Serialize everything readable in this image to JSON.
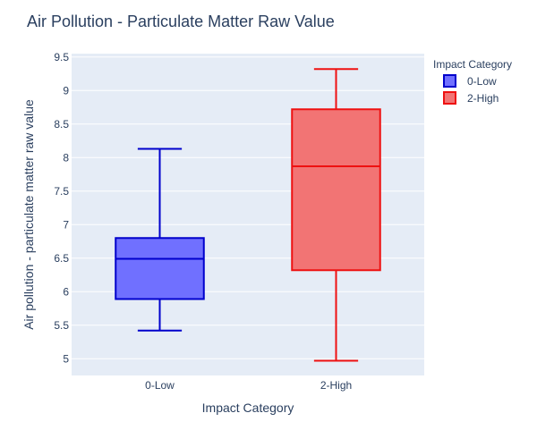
{
  "chart_data": {
    "type": "box",
    "title": "Air Pollution - Particulate Matter Raw Value",
    "xlabel": "Impact Category",
    "ylabel": "Air pollution - particulate matter raw value",
    "categories": [
      "0-Low",
      "2-High"
    ],
    "ylim": [
      4.75,
      9.55
    ],
    "yticks": [
      5,
      5.5,
      6,
      6.5,
      7,
      7.5,
      8,
      8.5,
      9,
      9.5
    ],
    "grid": true,
    "legend": {
      "title": "Impact Category",
      "placement": "top-right"
    },
    "series": [
      {
        "name": "0-Low",
        "category": "0-Low",
        "min": 5.42,
        "q1": 5.89,
        "median": 6.49,
        "q3": 6.8,
        "max": 8.13,
        "line_color": "#0000cc",
        "fill_color": "#7070ff"
      },
      {
        "name": "2-High",
        "category": "2-High",
        "min": 4.97,
        "q1": 6.32,
        "median": 7.87,
        "q3": 8.72,
        "max": 9.32,
        "line_color": "#ee1111",
        "fill_color": "#f27474"
      }
    ],
    "plot_bg": "#e5ecf6",
    "grid_color": "#ffffff",
    "text_color": "#2a3f5f"
  }
}
